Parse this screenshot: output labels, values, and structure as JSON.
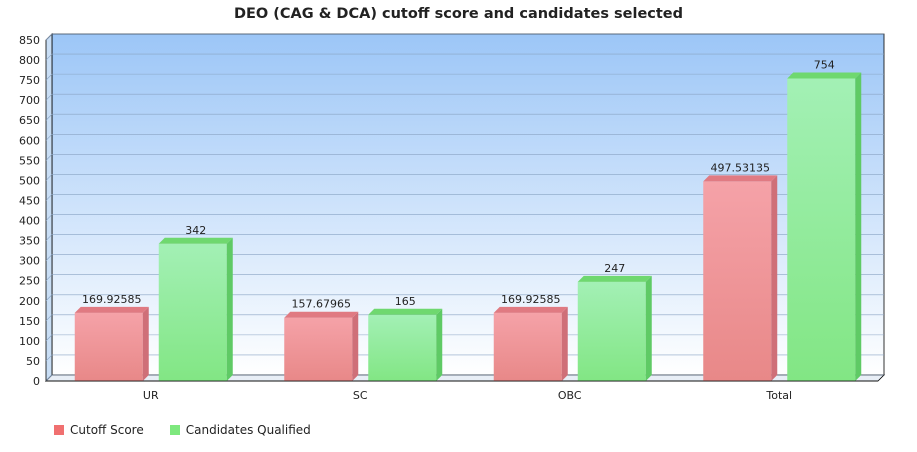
{
  "chart_data": {
    "type": "bar",
    "title": "DEO (CAG & DCA) cutoff score and candidates selected",
    "categories": [
      "UR",
      "SC",
      "OBC",
      "Total"
    ],
    "series": [
      {
        "name": "Cutoff Score",
        "values": [
          169.92585,
          157.67965,
          169.92585,
          497.53135
        ],
        "value_labels": [
          "169.92585",
          "157.67965",
          "169.92585",
          "497.53135"
        ],
        "color": "#f08080"
      },
      {
        "name": "Candidates Qualified",
        "values": [
          342,
          165,
          247,
          754
        ],
        "value_labels": [
          "342",
          "165",
          "247",
          "754"
        ],
        "color": "#7ee87e"
      }
    ],
    "ylim": [
      0,
      850
    ],
    "yticks": [
      "0",
      "50",
      "100",
      "150",
      "200",
      "250",
      "300",
      "350",
      "400",
      "450",
      "500",
      "550",
      "600",
      "650",
      "700",
      "750",
      "800",
      "850"
    ],
    "grid": true,
    "legend_position": "bottom-left"
  }
}
